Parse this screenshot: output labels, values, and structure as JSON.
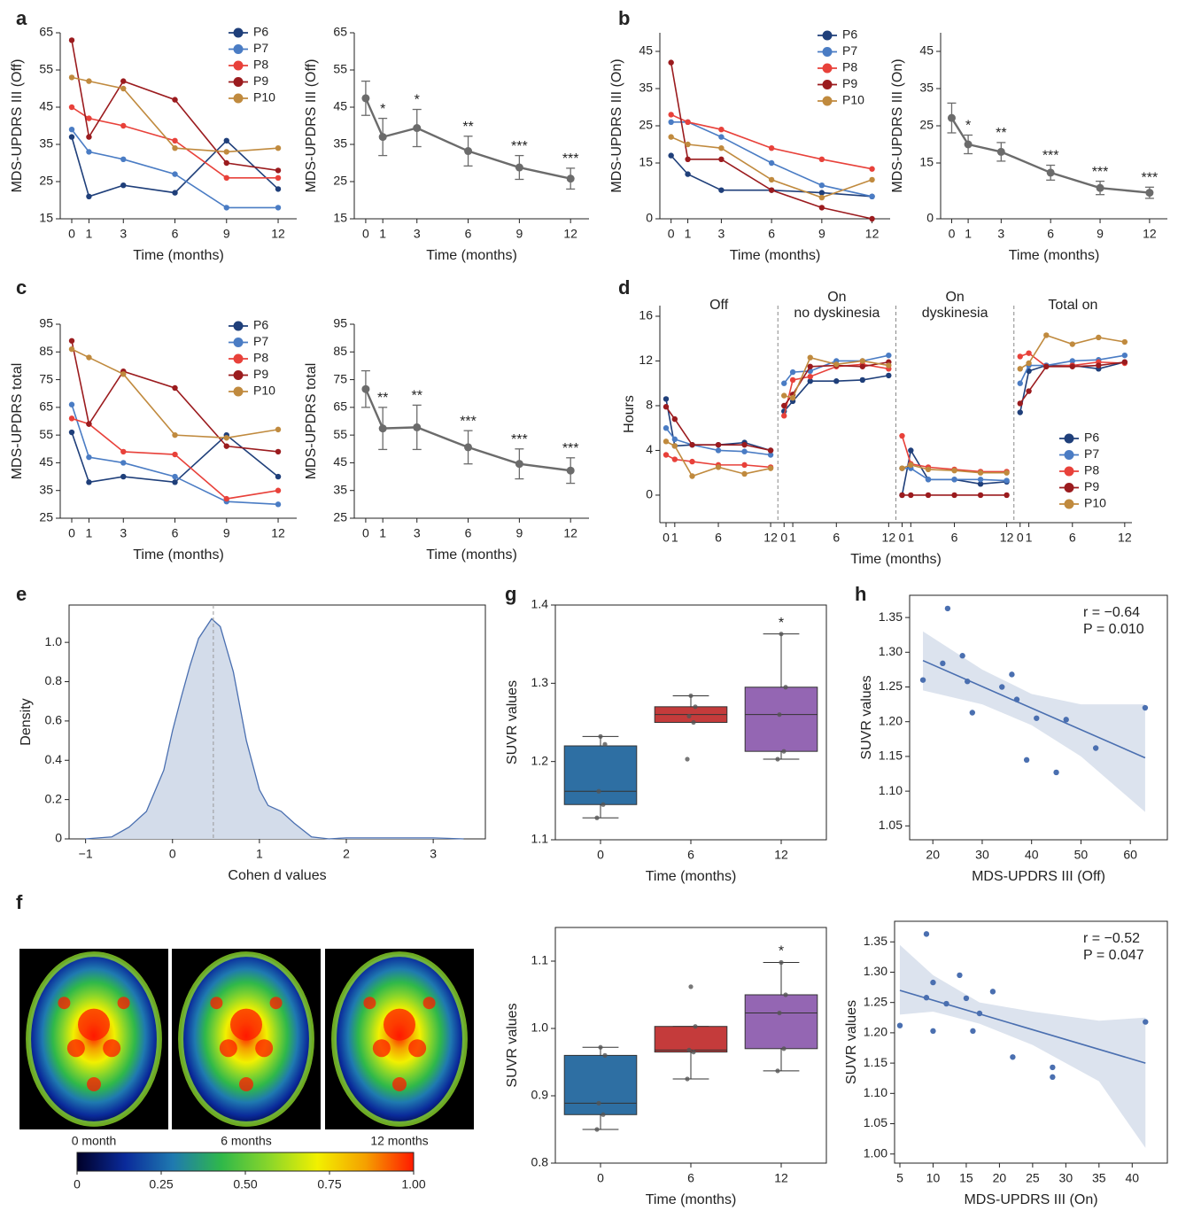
{
  "chart_data": [
    {
      "type": "line",
      "panel": "a",
      "x": [
        0,
        1,
        3,
        6,
        9,
        12
      ],
      "xlim": [
        -0.67,
        13.08
      ],
      "xticks": [
        0,
        1,
        3,
        6,
        9,
        12
      ],
      "ylim": [
        15,
        65
      ],
      "yticks": [
        15,
        25,
        35,
        45,
        55,
        65
      ],
      "xlabel": "Time (months)",
      "ylabel": "MDS-UPDRS III (Off)",
      "series": [
        {
          "name": "P6",
          "color": "#1f3f7a",
          "values": [
            37,
            21,
            24,
            22,
            36,
            23
          ]
        },
        {
          "name": "P7",
          "color": "#4a7cc4",
          "values": [
            39,
            33,
            31,
            27,
            18,
            18
          ]
        },
        {
          "name": "P8",
          "color": "#e8413a",
          "values": [
            45,
            42,
            40,
            36,
            26,
            26
          ]
        },
        {
          "name": "P9",
          "color": "#9b1b1e",
          "values": [
            63,
            37,
            52,
            47,
            30,
            28
          ]
        },
        {
          "name": "P10",
          "color": "#c08a3e",
          "values": [
            53,
            52,
            50,
            34,
            33,
            34
          ]
        }
      ]
    },
    {
      "type": "errorline",
      "x": [
        0,
        1,
        3,
        6,
        9,
        12
      ],
      "xlim": [
        -0.67,
        13.08
      ],
      "xticks": [
        0,
        1,
        3,
        6,
        9,
        12
      ],
      "ylim": [
        15,
        65
      ],
      "yticks": [
        15,
        25,
        35,
        45,
        55,
        65
      ],
      "xlabel": "Time (months)",
      "ylabel": "MDS-UPDRS III (Off)",
      "color": "#6b6b6b",
      "values": [
        47.4,
        37,
        39.4,
        33.2,
        28.8,
        25.8
      ],
      "errors": [
        4.6,
        5,
        5,
        4,
        3.2,
        2.8
      ],
      "sig": [
        null,
        "*",
        "*",
        "**",
        "***",
        "***"
      ]
    },
    {
      "type": "line",
      "panel": "b",
      "x": [
        0,
        1,
        3,
        6,
        9,
        12
      ],
      "xlim": [
        -0.67,
        13.08
      ],
      "xticks": [
        0,
        1,
        3,
        6,
        9,
        12
      ],
      "ylim": [
        0,
        50
      ],
      "yticks": [
        0,
        15,
        25,
        35,
        45
      ],
      "xlabel": "Time (months)",
      "ylabel": "MDS-UPDRS III (On)",
      "series": [
        {
          "name": "P6",
          "color": "#1f3f7a",
          "values": [
            17,
            12,
            7.7,
            7.7,
            7,
            6
          ]
        },
        {
          "name": "P7",
          "color": "#4a7cc4",
          "values": [
            26,
            26,
            22,
            15,
            9,
            6
          ]
        },
        {
          "name": "P8",
          "color": "#e8413a",
          "values": [
            28,
            26,
            24,
            19,
            16,
            13.4
          ]
        },
        {
          "name": "P9",
          "color": "#9b1b1e",
          "values": [
            42,
            16,
            16,
            7.7,
            3,
            0
          ]
        },
        {
          "name": "P10",
          "color": "#c08a3e",
          "values": [
            22,
            20,
            19,
            10.5,
            5.7,
            10.5
          ]
        }
      ]
    },
    {
      "type": "errorline",
      "x": [
        0,
        1,
        3,
        6,
        9,
        12
      ],
      "xlim": [
        -0.67,
        13.08
      ],
      "xticks": [
        0,
        1,
        3,
        6,
        9,
        12
      ],
      "ylim": [
        0,
        50
      ],
      "yticks": [
        0,
        15,
        25,
        35,
        45
      ],
      "xlabel": "Time (months)",
      "ylabel": "MDS-UPDRS III (On)",
      "color": "#6b6b6b",
      "values": [
        27.1,
        20,
        18,
        12.4,
        8.3,
        7
      ],
      "errors": [
        4,
        2.5,
        2.5,
        2,
        1.8,
        1.5
      ],
      "sig": [
        null,
        "*",
        "**",
        "***",
        "***",
        "***"
      ]
    },
    {
      "type": "line",
      "panel": "c",
      "x": [
        0,
        1,
        3,
        6,
        9,
        12
      ],
      "xlim": [
        -0.67,
        13.08
      ],
      "xticks": [
        0,
        1,
        3,
        6,
        9,
        12
      ],
      "ylim": [
        25,
        95
      ],
      "yticks": [
        25,
        35,
        45,
        55,
        65,
        75,
        85,
        95
      ],
      "xlabel": "Time (months)",
      "ylabel": "MDS-UPDRS total",
      "series": [
        {
          "name": "P6",
          "color": "#1f3f7a",
          "values": [
            56,
            38,
            40,
            38,
            55,
            40
          ]
        },
        {
          "name": "P7",
          "color": "#4a7cc4",
          "values": [
            66,
            47,
            45,
            40,
            31,
            30
          ]
        },
        {
          "name": "P8",
          "color": "#e8413a",
          "values": [
            61,
            59,
            49,
            48,
            32,
            35
          ]
        },
        {
          "name": "P9",
          "color": "#9b1b1e",
          "values": [
            89,
            59,
            78,
            72,
            51,
            49
          ]
        },
        {
          "name": "P10",
          "color": "#c08a3e",
          "values": [
            86,
            83,
            77,
            55,
            54,
            57
          ]
        }
      ]
    },
    {
      "type": "errorline",
      "x": [
        0,
        1,
        3,
        6,
        9,
        12
      ],
      "xlim": [
        -0.67,
        13.08
      ],
      "xticks": [
        0,
        1,
        3,
        6,
        9,
        12
      ],
      "ylim": [
        25,
        95
      ],
      "yticks": [
        25,
        35,
        45,
        55,
        65,
        75,
        85,
        95
      ],
      "xlabel": "Time (months)",
      "ylabel": "MDS-UPDRS total",
      "color": "#6b6b6b",
      "values": [
        71.6,
        57.4,
        57.8,
        50.6,
        44.6,
        42.2
      ],
      "errors": [
        6.6,
        7.6,
        8,
        6,
        5.4,
        4.6
      ],
      "sig": [
        null,
        "**",
        "**",
        "***",
        "***",
        "***"
      ]
    },
    {
      "type": "segmented",
      "panel": "d",
      "group_titles": [
        [
          "Off"
        ],
        [
          "On",
          "no dyskinesia"
        ],
        [
          "On",
          "dyskinesia"
        ],
        [
          "Total on"
        ]
      ],
      "x": [
        0,
        1,
        3,
        6,
        9,
        12
      ],
      "xlim": [
        -0.71,
        12.83
      ],
      "xticks": [
        0,
        1,
        6,
        12
      ],
      "ylim": [
        -2.46,
        16.95
      ],
      "yticks": [
        0,
        4,
        8,
        12,
        16
      ],
      "xlabel": "Time (months)",
      "ylabel": "Hours",
      "series": [
        {
          "name": "P6",
          "color": "#1f3f7a",
          "values": [
            [
              8.6,
              4.4,
              4.5,
              4.5,
              4.7,
              4.0
            ],
            [
              7.5,
              8.4,
              10.2,
              10.2,
              10.3,
              10.7
            ],
            [
              0,
              4.0,
              1.4,
              1.4,
              1.0,
              1.2
            ],
            [
              7.4,
              11.1,
              11.6,
              11.6,
              11.3,
              11.9
            ]
          ]
        },
        {
          "name": "P7",
          "color": "#4a7cc4",
          "values": [
            [
              6.0,
              5.0,
              4.5,
              4.0,
              3.9,
              3.6
            ],
            [
              10.0,
              11.0,
              11.1,
              12.0,
              12.0,
              12.5
            ],
            [
              2.4,
              2.4,
              1.4,
              1.4,
              1.4,
              1.3
            ],
            [
              10.0,
              11.6,
              11.6,
              12.0,
              12.1,
              12.5
            ]
          ]
        },
        {
          "name": "P8",
          "color": "#e8413a",
          "values": [
            [
              3.6,
              3.2,
              3.0,
              2.7,
              2.7,
              2.5
            ],
            [
              7.1,
              10.3,
              10.6,
              11.5,
              11.7,
              11.3
            ],
            [
              5.3,
              2.8,
              2.5,
              2.3,
              2.1,
              2.1
            ],
            [
              12.4,
              12.7,
              11.5,
              11.6,
              11.9,
              11.8
            ]
          ]
        },
        {
          "name": "P9",
          "color": "#9b1b1e",
          "values": [
            [
              7.9,
              6.8,
              4.5,
              4.5,
              4.5,
              4.0
            ],
            [
              8.0,
              9.0,
              11.5,
              11.6,
              11.5,
              11.9
            ],
            [
              0,
              0,
              0,
              0,
              0,
              0
            ],
            [
              8.2,
              9.3,
              11.5,
              11.5,
              11.6,
              11.9
            ]
          ]
        },
        {
          "name": "P10",
          "color": "#c08a3e",
          "values": [
            [
              4.8,
              4.4,
              1.7,
              2.5,
              1.9,
              2.4
            ],
            [
              8.9,
              8.7,
              12.3,
              11.7,
              12.0,
              11.6
            ],
            [
              2.4,
              2.7,
              2.3,
              2.2,
              2.0,
              2.0
            ],
            [
              11.3,
              11.8,
              14.3,
              13.5,
              14.1,
              13.7
            ]
          ]
        }
      ]
    },
    {
      "type": "density",
      "panel": "e",
      "color": "#4a6fb0",
      "fill": "#d3dcea",
      "x": [
        -1,
        -0.7,
        -0.5,
        -0.3,
        -0.1,
        0,
        0.1,
        0.2,
        0.3,
        0.45,
        0.55,
        0.7,
        0.85,
        1.0,
        1.1,
        1.25,
        1.4,
        1.6,
        1.8,
        2.0,
        2.5,
        3.0,
        3.35
      ],
      "values": [
        0,
        0.01,
        0.06,
        0.14,
        0.35,
        0.55,
        0.72,
        0.88,
        1.02,
        1.12,
        1.08,
        0.85,
        0.5,
        0.25,
        0.17,
        0.14,
        0.08,
        0.01,
        0,
        0.005,
        0.005,
        0.005,
        0
      ],
      "mean": 0.47,
      "xlim": [
        -1.19,
        3.6
      ],
      "xticks": [
        {
          "value": -1,
          "label": "−1"
        },
        0,
        1,
        2,
        3
      ],
      "ylim": [
        0,
        1.19
      ],
      "yticks": [
        0,
        0.2,
        0.4,
        0.6,
        0.8,
        {
          "value": 1,
          "label": "1.0"
        }
      ],
      "xlabel": "Cohen d values",
      "ylabel": "Density"
    },
    {
      "type": "box",
      "panel": "g",
      "categories": [
        "0",
        "6",
        "12"
      ],
      "colors": [
        "#2e6fa3",
        "#c43b3b",
        "#9466b3"
      ],
      "ylim": [
        1.1,
        1.4
      ],
      "yticks": [
        1.1,
        1.2,
        1.3,
        1.4
      ],
      "xlabel": "Time (months)",
      "ylabel": "SUVR values",
      "boxes": [
        {
          "min": 1.128,
          "q1": 1.145,
          "median": 1.162,
          "q3": 1.22,
          "max": 1.232,
          "points": [
            1.128,
            1.145,
            1.162,
            1.222,
            1.232
          ]
        },
        {
          "min": 1.25,
          "q1": 1.25,
          "median": 1.26,
          "q3": 1.27,
          "max": 1.284,
          "points": [
            1.203,
            1.25,
            1.258,
            1.27,
            1.284
          ]
        },
        {
          "min": 1.203,
          "q1": 1.213,
          "median": 1.26,
          "q3": 1.295,
          "max": 1.363,
          "points": [
            1.203,
            1.213,
            1.26,
            1.295,
            1.363
          ]
        }
      ],
      "sig": [
        null,
        null,
        "*"
      ]
    },
    {
      "type": "box",
      "categories": [
        "0",
        "6",
        "12"
      ],
      "colors": [
        "#2e6fa3",
        "#c43b3b",
        "#9466b3"
      ],
      "ylim": [
        0.8,
        1.15
      ],
      "yticks": [
        0.8,
        0.9,
        {
          "value": 1,
          "label": "1.0"
        },
        1.1
      ],
      "xlabel": "Time (months)",
      "ylabel": "SUVR values",
      "boxes": [
        {
          "min": 0.85,
          "q1": 0.872,
          "median": 0.889,
          "q3": 0.96,
          "max": 0.972,
          "points": [
            0.85,
            0.872,
            0.889,
            0.96,
            0.972
          ]
        },
        {
          "min": 0.925,
          "q1": 0.965,
          "median": 0.968,
          "q3": 1.003,
          "max": 1.003,
          "points": [
            0.925,
            0.965,
            0.968,
            1.003,
            1.062
          ]
        },
        {
          "min": 0.937,
          "q1": 0.97,
          "median": 1.023,
          "q3": 1.05,
          "max": 1.098,
          "points": [
            0.937,
            0.97,
            1.023,
            1.05,
            1.098
          ]
        }
      ],
      "sig": [
        null,
        null,
        "*"
      ]
    },
    {
      "type": "scatter",
      "panel": "h",
      "color": "#4a6fb0",
      "band_color": "#d3dcea",
      "xlim": [
        15.3,
        67.5
      ],
      "xticks": [
        20,
        30,
        40,
        50,
        60
      ],
      "ylim": [
        1.03,
        1.382
      ],
      "yticks": [
        1.05,
        {
          "value": 1.1,
          "label": "1.10"
        },
        1.15,
        {
          "value": 1.2,
          "label": "1.20"
        },
        1.25,
        {
          "value": 1.3,
          "label": "1.30"
        },
        1.35
      ],
      "xlabel": "MDS-UPDRS III (Off)",
      "ylabel": "SUVR values",
      "x": [
        18,
        22,
        23,
        26,
        27,
        28,
        34,
        36,
        37,
        39,
        41,
        45,
        47,
        53,
        63
      ],
      "values": [
        1.26,
        1.284,
        1.363,
        1.295,
        1.258,
        1.213,
        1.25,
        1.268,
        1.232,
        1.145,
        1.205,
        1.127,
        1.203,
        1.162,
        1.22
      ],
      "fit": {
        "x": [
          18,
          63
        ],
        "values": [
          1.288,
          1.148
        ]
      },
      "band": {
        "x": [
          18,
          30,
          40,
          50,
          63
        ],
        "lower": [
          1.245,
          1.225,
          1.195,
          1.15,
          1.07
        ],
        "upper": [
          1.33,
          1.275,
          1.24,
          1.225,
          1.225
        ]
      },
      "annotations": [
        "r = −0.64",
        "P = 0.010"
      ]
    },
    {
      "type": "scatter",
      "color": "#4a6fb0",
      "band_color": "#d3dcea",
      "xlim": [
        4.2,
        45.3
      ],
      "xticks": [
        5,
        10,
        15,
        20,
        25,
        30,
        35,
        40
      ],
      "ylim": [
        0.985,
        1.384
      ],
      "yticks": [
        {
          "value": 1,
          "label": "1.00"
        },
        1.05,
        {
          "value": 1.1,
          "label": "1.10"
        },
        1.15,
        {
          "value": 1.2,
          "label": "1.20"
        },
        1.25,
        {
          "value": 1.3,
          "label": "1.30"
        },
        1.35
      ],
      "xlabel": "MDS-UPDRS III (On)",
      "ylabel": "SUVR values",
      "x": [
        5,
        9,
        9,
        10,
        10,
        12,
        14,
        15,
        16,
        17,
        19,
        22,
        28,
        28,
        42
      ],
      "values": [
        1.212,
        1.363,
        1.258,
        1.283,
        1.203,
        1.248,
        1.295,
        1.257,
        1.203,
        1.232,
        1.268,
        1.16,
        1.143,
        1.127,
        1.218
      ],
      "fit": {
        "x": [
          5,
          42
        ],
        "values": [
          1.27,
          1.15
        ]
      },
      "band": {
        "x": [
          5,
          10,
          17,
          25,
          35,
          42
        ],
        "lower": [
          1.23,
          1.235,
          1.215,
          1.18,
          1.12,
          1.01
        ],
        "upper": [
          1.345,
          1.295,
          1.25,
          1.235,
          1.22,
          1.225
        ]
      },
      "annotations": [
        "r = −0.52",
        "P = 0.047"
      ]
    },
    {
      "type": "images",
      "panel": "f",
      "labels": [
        "0 month",
        "6 months",
        "12 months"
      ],
      "colorbar": {
        "lim": [
          0,
          1
        ],
        "ticks": [
          0,
          0.25,
          {
            "value": 0.5,
            "label": "0.50"
          },
          0.75,
          {
            "value": 1,
            "label": "1.00"
          }
        ],
        "colors": [
          "#000028",
          "#0a2a9a",
          "#1f7ab0",
          "#2fb84a",
          "#8ad62a",
          "#f2f000",
          "#f5a000",
          "#ff1a00"
        ]
      }
    }
  ]
}
